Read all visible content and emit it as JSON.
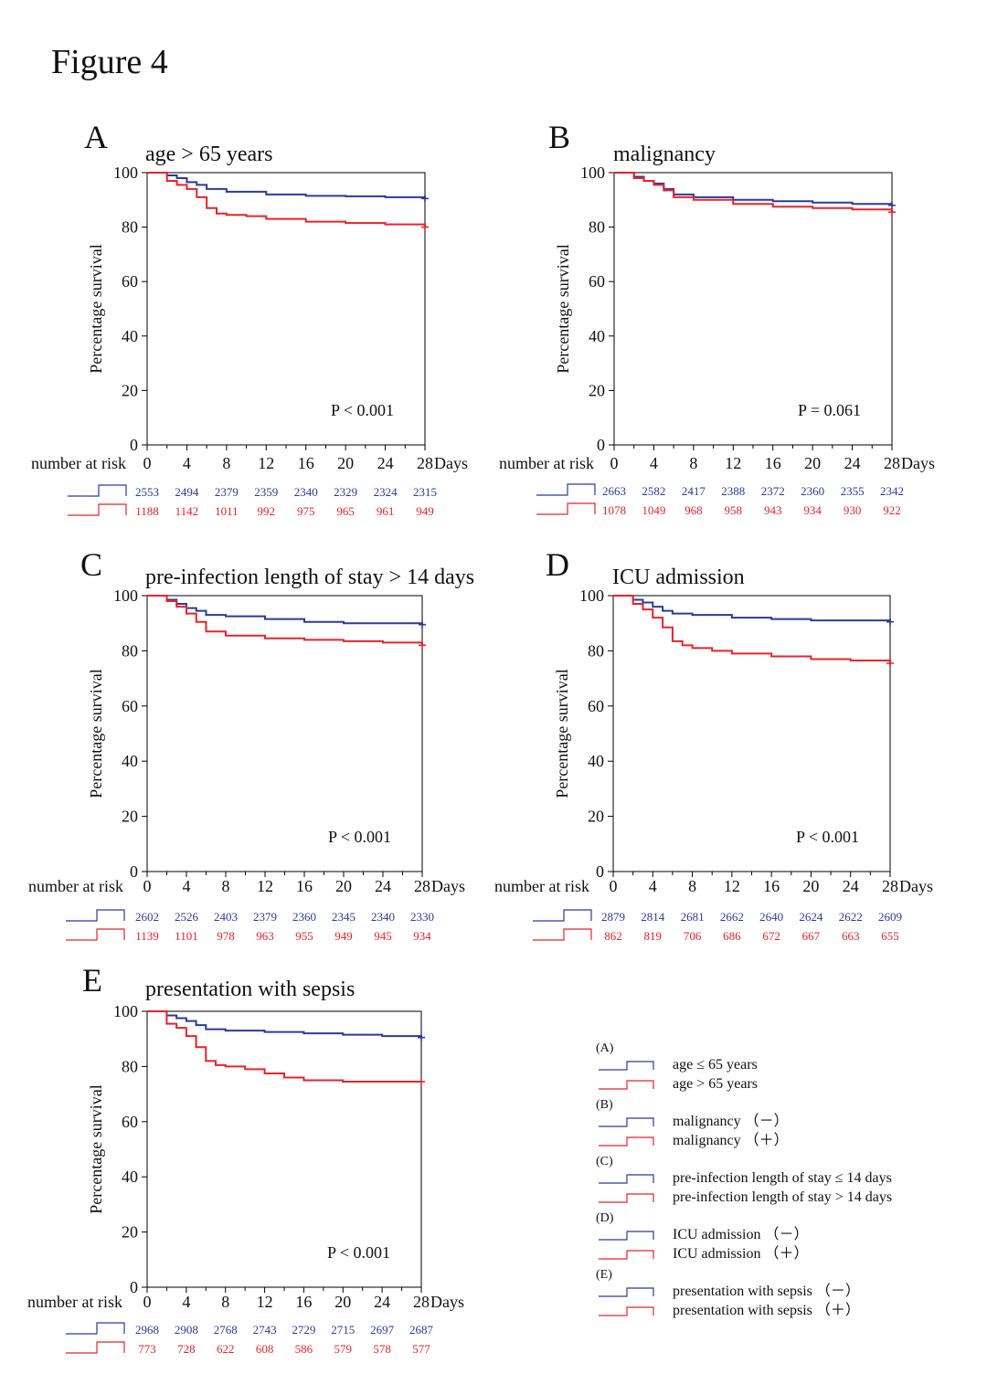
{
  "figure_title": "Figure 4",
  "colors": {
    "negative": "#2b3a9c",
    "positive": "#e8232a",
    "axis": "#000000"
  },
  "common": {
    "ylabel": "Percentage survival",
    "xlabel": "Days",
    "risk_label": "number at risk",
    "x_ticks": [
      0,
      4,
      8,
      12,
      16,
      20,
      24,
      28
    ],
    "y_ticks": [
      0,
      20,
      40,
      60,
      80,
      100
    ]
  },
  "chart_data": [
    {
      "type": "line",
      "letter": "A",
      "title": "age > 65 years",
      "p_value": "P < 0.001",
      "xlim": [
        0,
        28
      ],
      "ylim": [
        0,
        100
      ],
      "series": [
        {
          "name": "age ≤ 65 years",
          "x": [
            0,
            2,
            3,
            4,
            5,
            6,
            8,
            12,
            16,
            20,
            24,
            28
          ],
          "y": [
            100,
            99,
            98,
            96.5,
            95.5,
            94,
            93,
            92,
            91.5,
            91.3,
            91,
            90.5
          ],
          "at_risk": [
            2553,
            2494,
            2379,
            2359,
            2340,
            2329,
            2324,
            2315
          ]
        },
        {
          "name": "age > 65 years",
          "x": [
            0,
            2,
            3,
            4,
            5,
            6,
            7,
            8,
            10,
            12,
            16,
            20,
            24,
            28
          ],
          "y": [
            100,
            97,
            95.5,
            94,
            91,
            87,
            85,
            84.5,
            84,
            83,
            82,
            81.5,
            81,
            80
          ],
          "at_risk": [
            1188,
            1142,
            1011,
            992,
            975,
            965,
            961,
            949
          ]
        }
      ]
    },
    {
      "type": "line",
      "letter": "B",
      "title": "malignancy",
      "p_value": "P = 0.061",
      "xlim": [
        0,
        28
      ],
      "ylim": [
        0,
        100
      ],
      "series": [
        {
          "name": "malignancy (−)",
          "x": [
            0,
            2,
            3,
            4,
            5,
            6,
            8,
            12,
            16,
            20,
            24,
            28
          ],
          "y": [
            100,
            98.5,
            97,
            96,
            94,
            92,
            91,
            90,
            89.5,
            89,
            88.5,
            88
          ],
          "at_risk": [
            2663,
            2582,
            2417,
            2388,
            2372,
            2360,
            2355,
            2342
          ]
        },
        {
          "name": "malignancy (+)",
          "x": [
            0,
            2,
            3,
            4,
            5,
            6,
            8,
            12,
            16,
            20,
            24,
            28
          ],
          "y": [
            100,
            98,
            97,
            95.5,
            93.5,
            91,
            90,
            88.5,
            87.5,
            87,
            86.5,
            85.5
          ],
          "at_risk": [
            1078,
            1049,
            968,
            958,
            943,
            934,
            930,
            922
          ]
        }
      ]
    },
    {
      "type": "line",
      "letter": "C",
      "title": "pre-infection length of stay > 14 days",
      "p_value": "P < 0.001",
      "xlim": [
        0,
        28
      ],
      "ylim": [
        0,
        100
      ],
      "series": [
        {
          "name": "pre-infection length of stay ≤ 14 days",
          "x": [
            0,
            2,
            3,
            4,
            5,
            6,
            8,
            12,
            16,
            20,
            24,
            28
          ],
          "y": [
            100,
            98.5,
            97,
            95.5,
            94.5,
            93,
            92.5,
            91.5,
            90.5,
            90,
            90,
            89.5
          ],
          "at_risk": [
            2602,
            2526,
            2403,
            2379,
            2360,
            2345,
            2340,
            2330
          ]
        },
        {
          "name": "pre-infection length of stay > 14 days",
          "x": [
            0,
            2,
            3,
            4,
            5,
            6,
            8,
            12,
            16,
            20,
            24,
            28
          ],
          "y": [
            100,
            98,
            96,
            93.5,
            90.5,
            87,
            85.5,
            84.5,
            84,
            83.5,
            83,
            82
          ],
          "at_risk": [
            1139,
            1101,
            978,
            963,
            955,
            949,
            945,
            934
          ]
        }
      ]
    },
    {
      "type": "line",
      "letter": "D",
      "title": "ICU admission",
      "p_value": "P < 0.001",
      "xlim": [
        0,
        28
      ],
      "ylim": [
        0,
        100
      ],
      "series": [
        {
          "name": "ICU admission (−)",
          "x": [
            0,
            2,
            3,
            4,
            5,
            6,
            8,
            12,
            16,
            20,
            24,
            28
          ],
          "y": [
            100,
            98.5,
            97.5,
            96,
            94.5,
            93.5,
            93,
            92,
            91.5,
            91,
            91,
            90.5
          ],
          "at_risk": [
            2879,
            2814,
            2681,
            2662,
            2640,
            2624,
            2622,
            2609
          ]
        },
        {
          "name": "ICU admission (+)",
          "x": [
            0,
            2,
            3,
            4,
            5,
            6,
            7,
            8,
            10,
            12,
            16,
            20,
            24,
            28
          ],
          "y": [
            100,
            97,
            95,
            92,
            88.5,
            83.5,
            82,
            81,
            80,
            79,
            78,
            77,
            76.5,
            75.5
          ],
          "at_risk": [
            862,
            819,
            706,
            686,
            672,
            667,
            663,
            655
          ]
        }
      ]
    },
    {
      "type": "line",
      "letter": "E",
      "title": "presentation with sepsis",
      "p_value": "P < 0.001",
      "xlim": [
        0,
        28
      ],
      "ylim": [
        0,
        100
      ],
      "series": [
        {
          "name": "presentation with sepsis (−)",
          "x": [
            0,
            2,
            3,
            4,
            5,
            6,
            8,
            12,
            16,
            20,
            24,
            28
          ],
          "y": [
            100,
            98.5,
            97.5,
            96.5,
            95,
            93.5,
            93,
            92.5,
            92,
            91.5,
            91,
            90.5
          ],
          "at_risk": [
            2968,
            2908,
            2768,
            2743,
            2729,
            2715,
            2697,
            2687
          ]
        },
        {
          "name": "presentation with sepsis (+)",
          "x": [
            0,
            2,
            3,
            4,
            5,
            6,
            7,
            8,
            10,
            12,
            14,
            16,
            20,
            24,
            28
          ],
          "y": [
            100,
            95.5,
            94,
            91,
            87,
            82,
            80.5,
            80,
            79,
            77.5,
            76,
            75,
            74.5,
            74.5,
            74.5
          ],
          "at_risk": [
            773,
            728,
            622,
            608,
            586,
            579,
            578,
            577
          ]
        }
      ]
    }
  ],
  "legend": [
    {
      "letter": "(A)",
      "neg": "age ≤ 65 years",
      "pos": "age > 65 years"
    },
    {
      "letter": "(B)",
      "neg": "malignancy （－）",
      "pos": "malignancy （＋）"
    },
    {
      "letter": "(C)",
      "neg": "pre-infection length of stay ≤ 14 days",
      "pos": "pre-infection length of stay > 14 days"
    },
    {
      "letter": "(D)",
      "neg": "ICU admission （－）",
      "pos": "ICU admission （＋）"
    },
    {
      "letter": "(E)",
      "neg": "presentation with sepsis （－）",
      "pos": "presentation with sepsis （＋）"
    }
  ]
}
